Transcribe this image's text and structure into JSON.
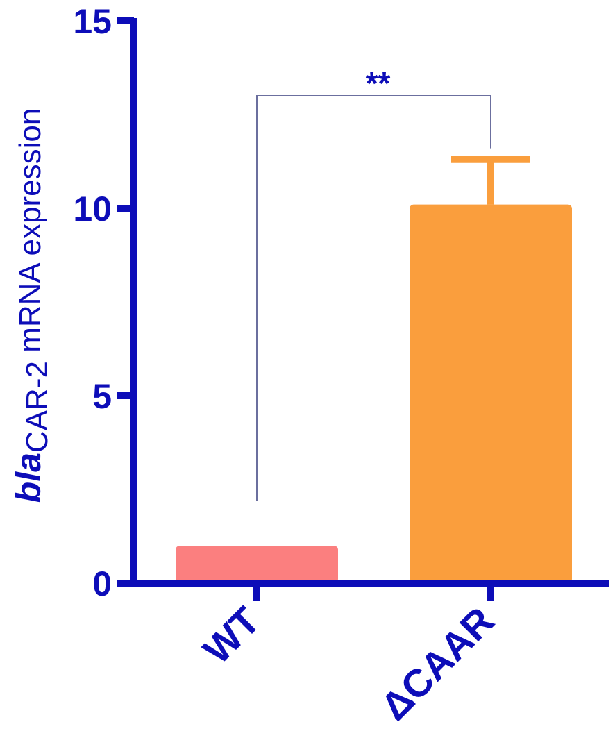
{
  "chart_data": {
    "type": "bar",
    "categories": [
      "WT",
      "ΔCAAR"
    ],
    "values": [
      1.0,
      10.1
    ],
    "errors": [
      0.0,
      1.2
    ],
    "bar_colors": [
      "#fb7f7f",
      "#fa9e3d"
    ],
    "ylim": [
      0,
      15
    ],
    "yticks": [
      0,
      5,
      10,
      15
    ],
    "ytick_labels": [
      "0",
      "5",
      "10",
      "15"
    ],
    "ylabel": {
      "italic_part": "bla",
      "subscript_part": "CAR-2",
      "rest": " mRNA expression"
    },
    "significance": {
      "label": "**",
      "between": [
        0,
        1
      ]
    },
    "axis_color": "#0d0db8",
    "text_color": "#0d0db8",
    "bracket_color": "#6b6f9e"
  }
}
